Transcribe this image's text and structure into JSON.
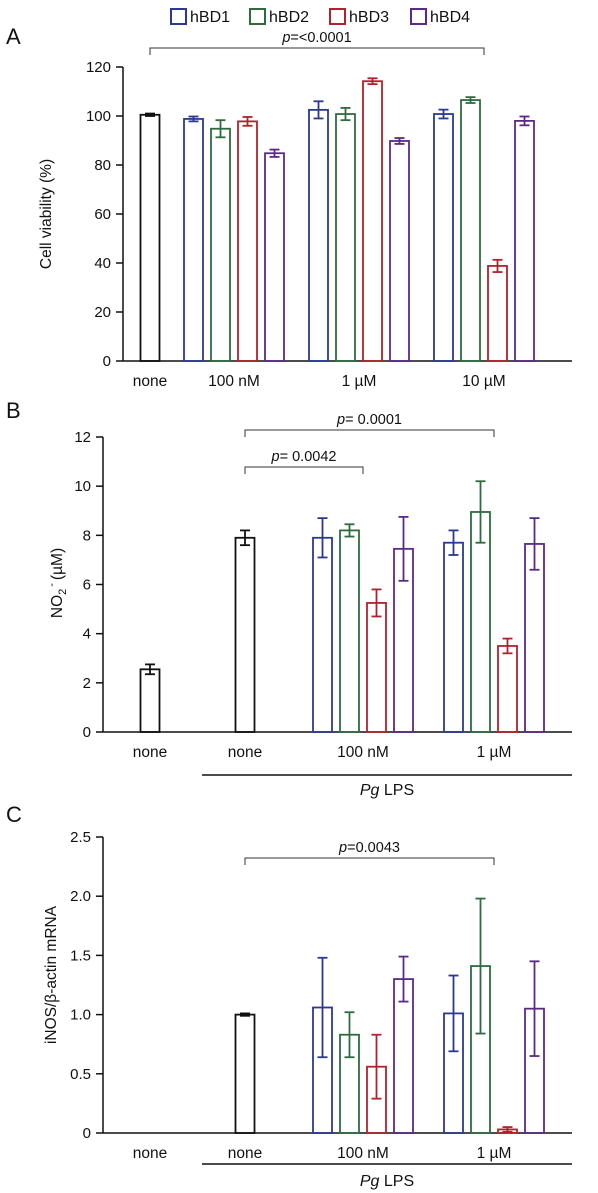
{
  "legend": [
    {
      "name": "hBD1",
      "color": "#2b3a8f"
    },
    {
      "name": "hBD2",
      "color": "#2e6b3f"
    },
    {
      "name": "hBD3",
      "color": "#b0222e"
    },
    {
      "name": "hBD4",
      "color": "#5a2a84"
    }
  ],
  "colors": {
    "control": "#111111"
  },
  "chart_data": [
    {
      "panel": "A",
      "type": "bar",
      "ylabel": "Cell viability (%)",
      "ylim": [
        0,
        120
      ],
      "yticks": [
        0,
        20,
        40,
        60,
        80,
        100,
        120
      ],
      "categories": [
        "none",
        "100 nM",
        "1 µM",
        "10 µM"
      ],
      "control": {
        "value": 100.5,
        "error": 0.5
      },
      "series": [
        {
          "name": "hBD1",
          "values": [
            null,
            98.8,
            102.5,
            100.8
          ],
          "errors": [
            null,
            1.0,
            3.5,
            1.8
          ]
        },
        {
          "name": "hBD2",
          "values": [
            null,
            94.8,
            100.8,
            106.5
          ],
          "errors": [
            null,
            3.5,
            2.5,
            1.2
          ]
        },
        {
          "name": "hBD3",
          "values": [
            null,
            97.8,
            114.2,
            38.8
          ],
          "errors": [
            null,
            1.8,
            1.2,
            2.5
          ]
        },
        {
          "name": "hBD4",
          "values": [
            null,
            84.8,
            89.8,
            98.0
          ],
          "errors": [
            null,
            1.5,
            1.2,
            1.8
          ]
        }
      ],
      "annotations": [
        {
          "text_p": "p",
          "text_rest": "=<0.0001",
          "from": "none",
          "to": "10 µM"
        }
      ]
    },
    {
      "panel": "B",
      "type": "bar",
      "ylabel_main": "NO",
      "ylabel_sub": "2",
      "ylabel_sup": "-",
      "ylabel_unit": "(µM)",
      "ylim": [
        0,
        12
      ],
      "yticks": [
        0,
        2,
        4,
        6,
        8,
        10,
        12
      ],
      "categories": [
        "none",
        "none",
        "100 nM",
        "1 µM"
      ],
      "control": [
        {
          "category": "none",
          "value": 2.55,
          "error": 0.2
        },
        {
          "category": "none",
          "value": 7.9,
          "error": 0.3
        }
      ],
      "series": [
        {
          "name": "hBD1",
          "values": [
            null,
            null,
            7.9,
            7.7
          ],
          "errors": [
            null,
            null,
            0.8,
            0.5
          ]
        },
        {
          "name": "hBD2",
          "values": [
            null,
            null,
            8.2,
            8.95
          ],
          "errors": [
            null,
            null,
            0.25,
            1.25
          ]
        },
        {
          "name": "hBD3",
          "values": [
            null,
            null,
            5.25,
            3.5
          ],
          "errors": [
            null,
            null,
            0.55,
            0.3
          ]
        },
        {
          "name": "hBD4",
          "values": [
            null,
            null,
            7.45,
            7.65
          ],
          "errors": [
            null,
            null,
            1.3,
            1.05
          ]
        }
      ],
      "group_label_italic": "Pg",
      "group_label_rest": " LPS",
      "annotations": [
        {
          "text_p": "p",
          "text_rest": "= 0.0042",
          "from": "none",
          "to": "100 nM"
        },
        {
          "text_p": "p",
          "text_rest": "= 0.0001",
          "from": "none",
          "to": "1 µM"
        }
      ]
    },
    {
      "panel": "C",
      "type": "bar",
      "ylabel": "iNOS/β-actin mRNA",
      "ylim": [
        0,
        2.5
      ],
      "yticks": [
        "0",
        "0.5",
        "1.0",
        "1.5",
        "2.0",
        "2.5"
      ],
      "categories": [
        "none",
        "none",
        "100 nM",
        "1 µM"
      ],
      "control": [
        {
          "category": "none",
          "value": 1.0,
          "error": 0.01
        }
      ],
      "series": [
        {
          "name": "hBD1",
          "values": [
            null,
            null,
            1.06,
            1.01
          ],
          "errors": [
            null,
            null,
            0.42,
            0.32
          ]
        },
        {
          "name": "hBD2",
          "values": [
            null,
            null,
            0.83,
            1.41
          ],
          "errors": [
            null,
            null,
            0.19,
            0.57
          ]
        },
        {
          "name": "hBD3",
          "values": [
            null,
            null,
            0.56,
            0.03
          ],
          "errors": [
            null,
            null,
            0.27,
            0.02
          ]
        },
        {
          "name": "hBD4",
          "values": [
            null,
            null,
            1.3,
            1.05
          ],
          "errors": [
            null,
            null,
            0.19,
            0.4
          ]
        }
      ],
      "group_label_italic": "Pg",
      "group_label_rest": " LPS",
      "annotations": [
        {
          "text_p": "p",
          "text_rest": "=0.0043",
          "from": "none",
          "to": "1 µM"
        }
      ]
    }
  ]
}
